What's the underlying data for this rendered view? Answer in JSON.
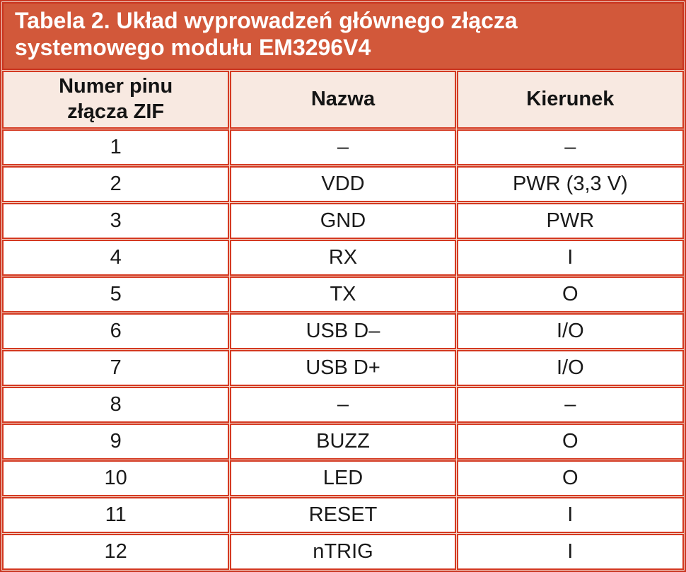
{
  "table": {
    "title": "Tabela 2. Układ wyprowadzeń głównego złącza\nsystemowego modułu EM3296V4",
    "columns": [
      "Numer pinu\nzłącza ZIF",
      "Nazwa",
      "Kierunek"
    ],
    "rows": [
      [
        "1",
        "–",
        "–"
      ],
      [
        "2",
        "VDD",
        "PWR (3,3 V)"
      ],
      [
        "3",
        "GND",
        "PWR"
      ],
      [
        "4",
        "RX",
        "I"
      ],
      [
        "5",
        "TX",
        "O"
      ],
      [
        "6",
        "USB D–",
        "I/O"
      ],
      [
        "7",
        "USB D+",
        "I/O"
      ],
      [
        "8",
        "–",
        "–"
      ],
      [
        "9",
        "BUZZ",
        "O"
      ],
      [
        "10",
        "LED",
        "O"
      ],
      [
        "11",
        "RESET",
        "I"
      ],
      [
        "12",
        "nTRIG",
        "I"
      ]
    ],
    "colors": {
      "title_bg": "#d2583a",
      "title_text": "#ffffff",
      "border_red": "#d43a22",
      "outer_border": "#c93520",
      "header_bg": "#f8e9e1",
      "row_bg": "#ffffff",
      "gap_line": "#f3d6c9",
      "body_text": "#1a1a1a"
    }
  }
}
